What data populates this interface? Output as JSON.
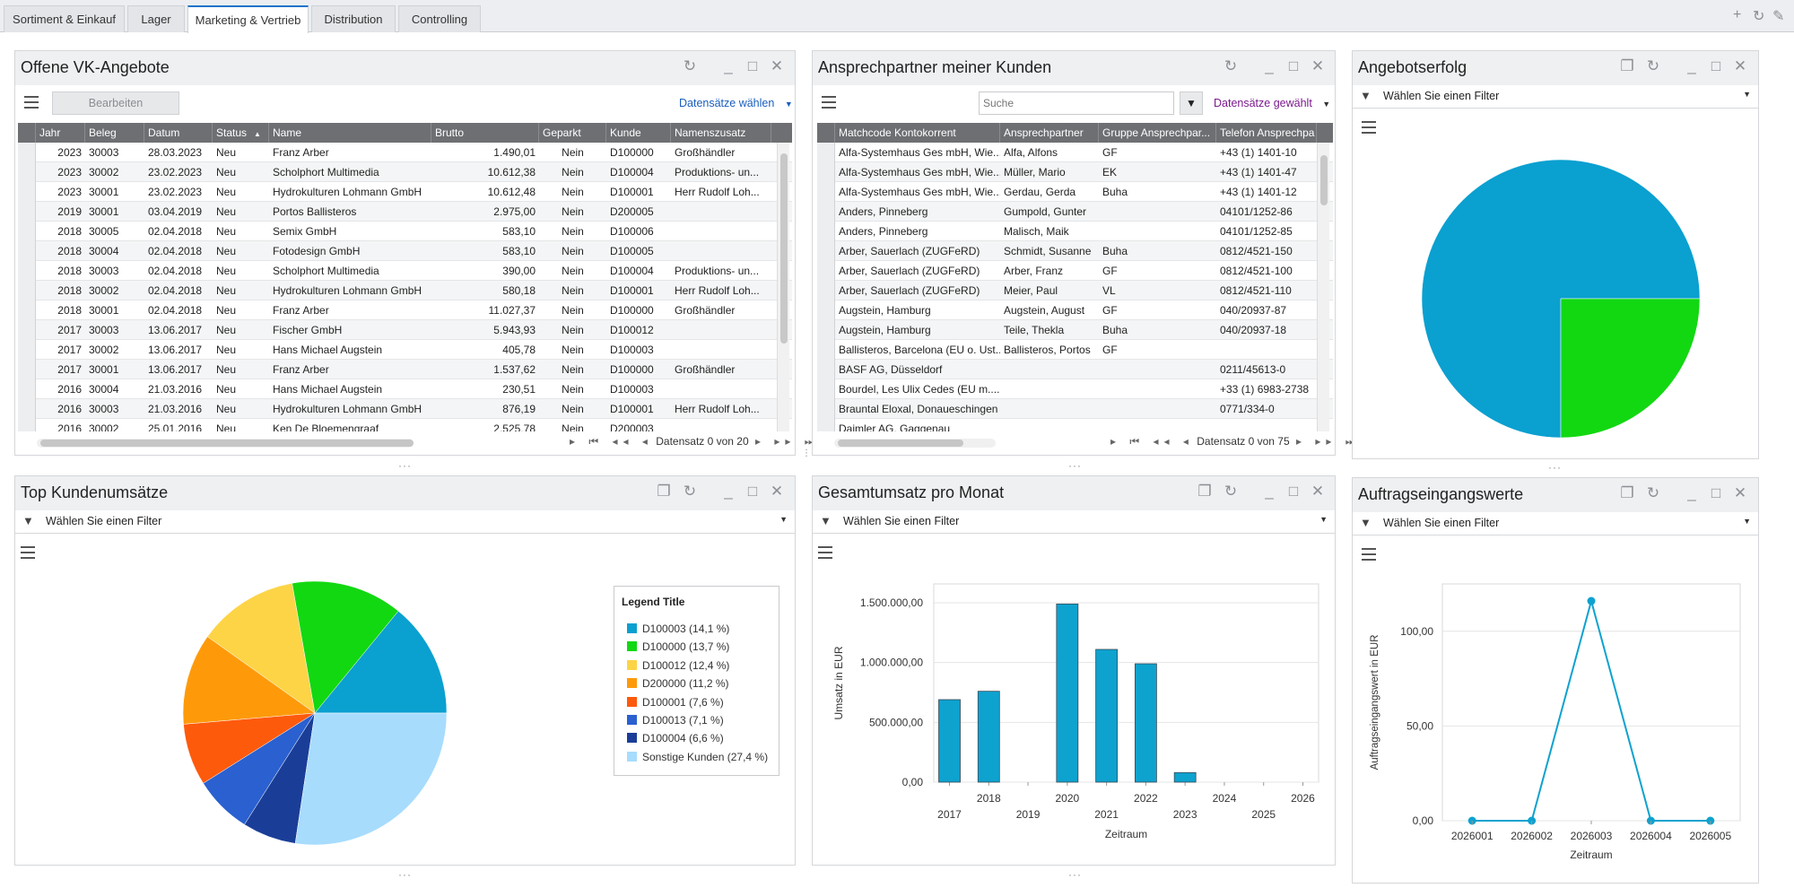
{
  "tabs": [
    {
      "label": "Sortiment & Einkauf"
    },
    {
      "label": "Lager"
    },
    {
      "label": "Marketing & Vertrieb"
    },
    {
      "label": "Distribution"
    },
    {
      "label": "Controlling"
    }
  ],
  "active_tab": "Marketing & Vertrieb",
  "panels": {
    "offers": {
      "title": "Offene VK-Angebote",
      "edit_label": "Bearbeiten",
      "select_label": "Datensätze wählen",
      "columns": [
        "Jahr",
        "Beleg",
        "Datum",
        "Status",
        "Name",
        "Brutto",
        "Geparkt",
        "Kunde",
        "Namenszusatz"
      ],
      "rows": [
        [
          "2023",
          "30003",
          "28.03.2023",
          "Neu",
          "Franz Arber",
          "1.490,01",
          "Nein",
          "D100000",
          "Großhändler"
        ],
        [
          "2023",
          "30002",
          "23.02.2023",
          "Neu",
          "Scholphort Multimedia",
          "10.612,38",
          "Nein",
          "D100004",
          "Produktions- un..."
        ],
        [
          "2023",
          "30001",
          "23.02.2023",
          "Neu",
          "Hydrokulturen Lohmann GmbH",
          "10.612,48",
          "Nein",
          "D100001",
          "Herr Rudolf Loh..."
        ],
        [
          "2019",
          "30001",
          "03.04.2019",
          "Neu",
          "Portos Ballisteros",
          "2.975,00",
          "Nein",
          "D200005",
          ""
        ],
        [
          "2018",
          "30005",
          "02.04.2018",
          "Neu",
          "Semix GmbH",
          "583,10",
          "Nein",
          "D100006",
          ""
        ],
        [
          "2018",
          "30004",
          "02.04.2018",
          "Neu",
          "Fotodesign GmbH",
          "583,10",
          "Nein",
          "D100005",
          ""
        ],
        [
          "2018",
          "30003",
          "02.04.2018",
          "Neu",
          "Scholphort Multimedia",
          "390,00",
          "Nein",
          "D100004",
          "Produktions- un..."
        ],
        [
          "2018",
          "30002",
          "02.04.2018",
          "Neu",
          "Hydrokulturen Lohmann GmbH",
          "580,18",
          "Nein",
          "D100001",
          "Herr Rudolf Loh..."
        ],
        [
          "2018",
          "30001",
          "02.04.2018",
          "Neu",
          "Franz Arber",
          "11.027,37",
          "Nein",
          "D100000",
          "Großhändler"
        ],
        [
          "2017",
          "30003",
          "13.06.2017",
          "Neu",
          "Fischer GmbH",
          "5.943,93",
          "Nein",
          "D100012",
          ""
        ],
        [
          "2017",
          "30002",
          "13.06.2017",
          "Neu",
          "Hans Michael Augstein",
          "405,78",
          "Nein",
          "D100003",
          ""
        ],
        [
          "2017",
          "30001",
          "13.06.2017",
          "Neu",
          "Franz Arber",
          "1.537,62",
          "Nein",
          "D100000",
          "Großhändler"
        ],
        [
          "2016",
          "30004",
          "21.03.2016",
          "Neu",
          "Hans Michael Augstein",
          "230,51",
          "Nein",
          "D100003",
          ""
        ],
        [
          "2016",
          "30003",
          "21.03.2016",
          "Neu",
          "Hydrokulturen Lohmann GmbH",
          "876,19",
          "Nein",
          "D100001",
          "Herr Rudolf Loh..."
        ],
        [
          "2016",
          "30002",
          "25.01.2016",
          "Neu",
          "Ken De Bloemengraaf",
          "2.525,78",
          "Nein",
          "D200003",
          ""
        ]
      ],
      "pager": "Datensatz 0 von 20"
    },
    "contacts": {
      "title": "Ansprechpartner meiner Kunden",
      "search_placeholder": "Suche",
      "select_label": "Datensätze gewählt",
      "columns": [
        "Matchcode Kontokorrent",
        "Ansprechpartner",
        "Gruppe Ansprechpar...",
        "Telefon Ansprechpa"
      ],
      "rows": [
        [
          "Alfa-Systemhaus Ges mbH, Wie...",
          "Alfa, Alfons",
          "GF",
          "+43 (1) 1401-10"
        ],
        [
          "Alfa-Systemhaus Ges mbH, Wie...",
          "Müller, Mario",
          "EK",
          "+43 (1) 1401-47"
        ],
        [
          "Alfa-Systemhaus Ges mbH, Wie...",
          "Gerdau, Gerda",
          "Buha",
          "+43 (1) 1401-12"
        ],
        [
          "Anders, Pinneberg",
          "Gumpold, Gunter",
          "",
          "04101/1252-86"
        ],
        [
          "Anders, Pinneberg",
          "Malisch, Maik",
          "",
          "04101/1252-85"
        ],
        [
          "Arber, Sauerlach (ZUGFeRD)",
          "Schmidt, Susanne",
          "Buha",
          "0812/4521-150"
        ],
        [
          "Arber, Sauerlach (ZUGFeRD)",
          "Arber, Franz",
          "GF",
          "0812/4521-100"
        ],
        [
          "Arber, Sauerlach (ZUGFeRD)",
          "Meier, Paul",
          "VL",
          "0812/4521-110"
        ],
        [
          "Augstein, Hamburg",
          "Augstein, August",
          "GF",
          "040/20937-87"
        ],
        [
          "Augstein, Hamburg",
          "Teile, Thekla",
          "Buha",
          "040/20937-18"
        ],
        [
          "Ballisteros, Barcelona (EU o. Ust...",
          "Ballisteros, Portos",
          "GF",
          ""
        ],
        [
          "BASF AG, Düsseldorf",
          "",
          "",
          "0211/45613-0"
        ],
        [
          "Bourdel, Les Ulix Cedes (EU m....",
          "",
          "",
          "+33 (1) 6983-2738"
        ],
        [
          "Brauntal Eloxal, Donaueschingen",
          "",
          "",
          "0771/334-0"
        ],
        [
          "Daimler AG, Gaggenau",
          "",
          "",
          ""
        ]
      ],
      "pager": "Datensatz 0 von 75"
    },
    "offer_success": {
      "title": "Angebotserfolg",
      "filter_label": "Wählen Sie einen Filter"
    },
    "top_customers": {
      "title": "Top Kundenumsätze",
      "filter_label": "Wählen Sie einen Filter",
      "legend_title": "Legend Title"
    },
    "monthly_revenue": {
      "title": "Gesamtumsatz pro Monat",
      "filter_label": "Wählen Sie einen Filter"
    },
    "order_intake": {
      "title": "Auftragseingangswerte",
      "filter_label": "Wählen Sie einen Filter"
    }
  },
  "colors": {
    "accent": "#1a73c9",
    "bar_blue": "#0ea2cf",
    "pie_green": "#0ed80e"
  },
  "chart_data": [
    {
      "id": "angebotserfolg",
      "type": "pie",
      "title": "",
      "slices": [
        {
          "label": "",
          "value": 75,
          "color": "#0aa0d0"
        },
        {
          "label": "",
          "value": 25,
          "color": "#12d812"
        }
      ]
    },
    {
      "id": "top_kundenumsaetze",
      "type": "pie",
      "title": "",
      "legend_title": "Legend Title",
      "legend_position": "right",
      "slices": [
        {
          "label": "D100003 (14,1 %)",
          "value": 14.1,
          "color": "#0aa0d0"
        },
        {
          "label": "D100000 (13,7 %)",
          "value": 13.7,
          "color": "#12d812"
        },
        {
          "label": "D100012 (12,4 %)",
          "value": 12.4,
          "color": "#fdd446"
        },
        {
          "label": "D200000 (11,2 %)",
          "value": 11.2,
          "color": "#fe9a0a"
        },
        {
          "label": "D100001 (7,6 %)",
          "value": 7.6,
          "color": "#fe5a0c"
        },
        {
          "label": "D100013 (7,1 %)",
          "value": 7.1,
          "color": "#2a60d0"
        },
        {
          "label": "D100004 (6,6 %)",
          "value": 6.6,
          "color": "#1a3e98"
        },
        {
          "label": "Sonstige Kunden (27,4 %)",
          "value": 27.4,
          "color": "#a7dcfd"
        }
      ]
    },
    {
      "id": "gesamtumsatz_pro_monat",
      "type": "bar",
      "title": "",
      "xlabel": "Zeitraum",
      "ylabel": "Umsatz in EUR",
      "ylim": [
        0,
        1500000
      ],
      "yticks": [
        "0,00",
        "500.000,00",
        "1.000.000,00",
        "1.500.000,00"
      ],
      "xticks": [
        "2017",
        "2018",
        "2019",
        "2020",
        "2021",
        "2022",
        "2023",
        "2024",
        "2025",
        "2026"
      ],
      "x": [
        2017.0,
        2018.0,
        2020.0,
        2021.0,
        2022.0,
        2023.0
      ],
      "values": [
        690000,
        760000,
        1490000,
        1110000,
        990000,
        80000
      ],
      "grid": true
    },
    {
      "id": "auftragseingangswerte",
      "type": "line",
      "title": "",
      "xlabel": "Zeitraum",
      "ylabel": "Auftragseingangswert in EUR",
      "categories": [
        "2026001",
        "2026002",
        "2026003",
        "2026004",
        "2026005"
      ],
      "values": [
        0,
        0,
        116,
        0,
        0
      ],
      "ylim": [
        0,
        125
      ],
      "yticks": [
        "0,00",
        "50,00",
        "100,00"
      ],
      "grid": true
    }
  ]
}
